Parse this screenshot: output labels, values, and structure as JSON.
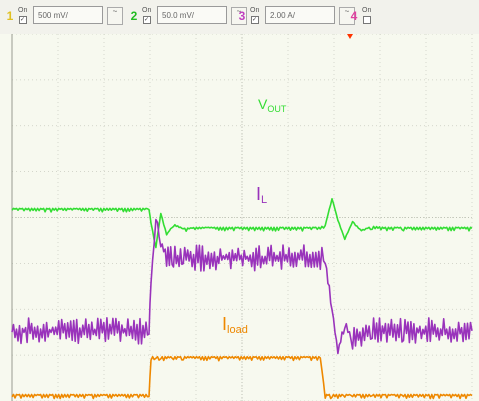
{
  "toolbar": {
    "channels": [
      {
        "number": "1",
        "on_label": "On",
        "scale": "500 mV/",
        "coupling": "~",
        "color": "#e0c020"
      },
      {
        "number": "2",
        "on_label": "On",
        "scale": "50.0 mV/",
        "coupling": "~",
        "color": "#22bb22"
      },
      {
        "number": "3",
        "on_label": "On",
        "scale": "2.00 A/",
        "coupling": "~",
        "color": "#c040c0"
      },
      {
        "number": "4",
        "on_label": "On",
        "color": "#e040a0"
      }
    ]
  },
  "chart_data": {
    "type": "line",
    "grid": true,
    "x": [
      0,
      14,
      14.2,
      14.7,
      15.2,
      15.8,
      16.5,
      17.5,
      19,
      31.5,
      32,
      32.7,
      33.3,
      34,
      34.8,
      35.7,
      36.8,
      38,
      40,
      47
    ],
    "series": [
      {
        "name": "V",
        "name_sub": "OUT",
        "color": "#33dd33",
        "values": [
          0.35,
          0.35,
          0.1,
          -0.35,
          0.28,
          -0.12,
          0.06,
          -0.02,
          0,
          0,
          0.05,
          0.55,
          0.15,
          -0.2,
          0.12,
          -0.05,
          0.02,
          0,
          0,
          0
        ]
      },
      {
        "name": "I",
        "name_sub": "L",
        "color": "#9933bb",
        "values": [
          -1.9,
          -1.9,
          -1.0,
          0.2,
          -0.3,
          -0.5,
          -0.55,
          -0.55,
          -0.55,
          -0.55,
          -0.6,
          -1.5,
          -2.3,
          -1.8,
          -2.05,
          -1.95,
          -1.9,
          -1.9,
          -1.9,
          -1.9
        ]
      },
      {
        "name": "I",
        "name_sub": "load",
        "color": "#ee8800",
        "values": [
          -3.1,
          -3.1,
          -2.4,
          -2.4,
          -2.4,
          -2.4,
          -2.4,
          -2.4,
          -2.4,
          -2.4,
          -3.1,
          -3.1,
          -3.1,
          -3.1,
          -3.1,
          -3.1,
          -3.1,
          -3.1,
          -3.1,
          -3.1
        ]
      }
    ]
  }
}
